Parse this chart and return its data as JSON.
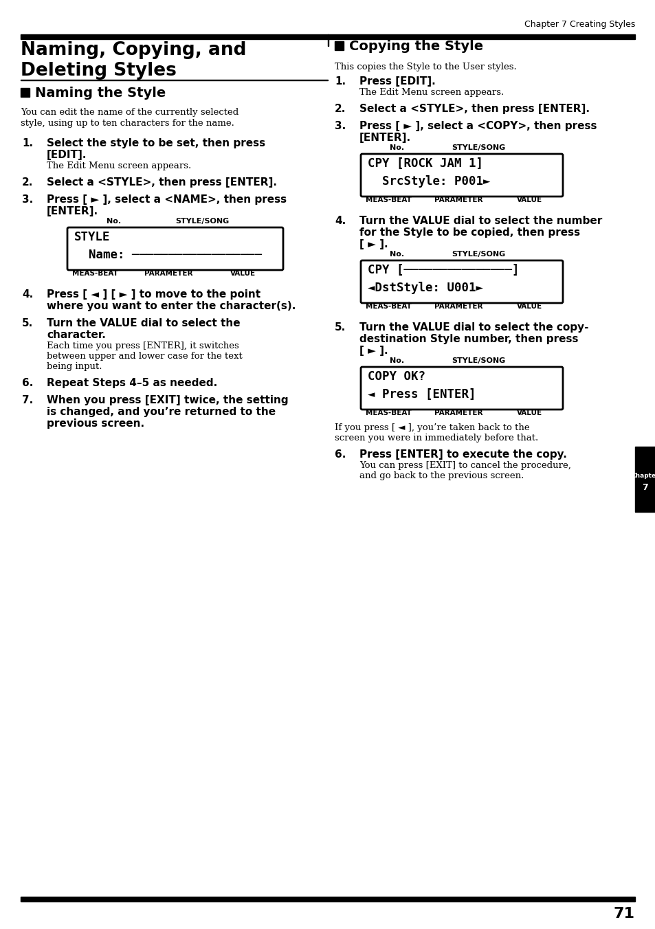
{
  "header_right": "Chapter 7 Creating Styles",
  "main_title_line1": "Naming, Copying, and",
  "main_title_line2": "Deleting Styles",
  "left_section_title": "Naming the Style",
  "right_section_title": "Copying the Style",
  "left_intro_lines": [
    "You can edit the name of the currently selected",
    "style, using up to ten characters for the name."
  ],
  "right_intro": "This copies the Style to the User styles.",
  "left_steps": [
    {
      "num": "1.",
      "bold_lines": [
        "Select the style to be set, then press",
        "[EDIT]."
      ],
      "normal_lines": [
        "The Edit Menu screen appears."
      ]
    },
    {
      "num": "2.",
      "bold_lines": [
        "Select a <STYLE>, then press [ENTER]."
      ],
      "normal_lines": []
    },
    {
      "num": "3.",
      "bold_lines": [
        "Press [ ► ], select a <NAME>, then press",
        "[ENTER]."
      ],
      "normal_lines": [],
      "has_lcd": true,
      "lcd_lines": [
        "STYLE",
        "  Name: ──────────────────"
      ]
    },
    {
      "num": "4.",
      "bold_lines": [
        "Press [ ◄ ] [ ► ] to move to the point",
        "where you want to enter the character(s)."
      ],
      "normal_lines": []
    },
    {
      "num": "5.",
      "bold_lines": [
        "Turn the VALUE dial to select the",
        "character."
      ],
      "normal_lines": [
        "Each time you press [ENTER], it switches",
        "between upper and lower case for the text",
        "being input."
      ]
    },
    {
      "num": "6.",
      "bold_lines": [
        "Repeat Steps 4–5 as needed."
      ],
      "normal_lines": []
    },
    {
      "num": "7.",
      "bold_lines": [
        "When you press [EXIT] twice, the setting",
        "is changed, and you’re returned to the",
        "previous screen."
      ],
      "normal_lines": []
    }
  ],
  "right_steps": [
    {
      "num": "1.",
      "bold_lines": [
        "Press [EDIT]."
      ],
      "normal_lines": [
        "The Edit Menu screen appears."
      ]
    },
    {
      "num": "2.",
      "bold_lines": [
        "Select a <STYLE>, then press [ENTER]."
      ],
      "normal_lines": []
    },
    {
      "num": "3.",
      "bold_lines": [
        "Press [ ► ], select a <COPY>, then press",
        "[ENTER]."
      ],
      "normal_lines": [],
      "has_lcd": true,
      "lcd_lines": [
        "CPY [ROCK JAM 1]",
        "  SrcStyle: P001►"
      ]
    },
    {
      "num": "4.",
      "bold_lines": [
        "Turn the VALUE dial to select the number",
        "for the Style to be copied, then press",
        "[ ► ]."
      ],
      "normal_lines": [],
      "has_lcd": true,
      "lcd_lines": [
        "CPY [───────────────]",
        "◄DstStyle: U001►"
      ]
    },
    {
      "num": "5.",
      "bold_lines": [
        "Turn the VALUE dial to select the copy-",
        "destination Style number, then press",
        "[ ► ]."
      ],
      "normal_lines": [],
      "has_lcd": true,
      "lcd_lines": [
        "COPY OK?",
        "◄ Press [ENTER]"
      ],
      "post_lcd_lines": [
        "If you press [ ◄ ], you’re taken back to the",
        "screen you were in immediately before that."
      ]
    },
    {
      "num": "6.",
      "bold_lines": [
        "Press [ENTER] to execute the copy."
      ],
      "normal_lines": [
        "You can press [EXIT] to cancel the procedure,",
        "and go back to the previous screen."
      ]
    }
  ],
  "page_number": "71",
  "bg_color": "#ffffff"
}
